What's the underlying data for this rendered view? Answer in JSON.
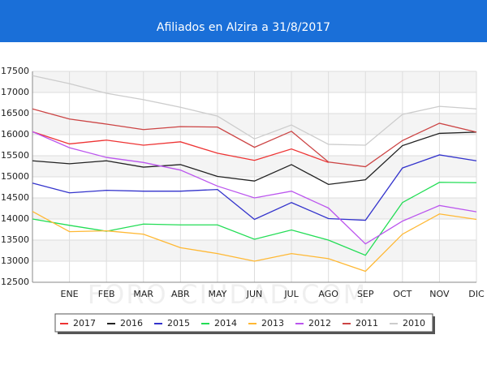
{
  "chart_data": {
    "type": "line",
    "title": "Afiliados en Alzira a 31/8/2017",
    "watermark": "FORO-CIUDAD.COM",
    "categories": [
      null,
      "ENE",
      "FEB",
      "MAR",
      "ABR",
      "MAY",
      "JUN",
      "JUL",
      "AGO",
      "SEP",
      "OCT",
      "NOV",
      "DIC"
    ],
    "ylim": [
      12500,
      17500
    ],
    "yticks": [
      12500,
      13000,
      13500,
      14000,
      14500,
      15000,
      15500,
      16000,
      16500,
      17000,
      17500
    ],
    "grid": true,
    "series": [
      {
        "name": "2017",
        "color": "#ee3333",
        "values": [
          16070,
          15780,
          15870,
          15750,
          15830,
          15560,
          15390,
          15660,
          15340,
          null,
          null,
          null,
          null
        ]
      },
      {
        "name": "2016",
        "color": "#222222",
        "values": [
          15380,
          15310,
          15380,
          15230,
          15290,
          15010,
          14900,
          15290,
          14820,
          14930,
          15740,
          16030,
          16060
        ]
      },
      {
        "name": "2015",
        "color": "#3333cc",
        "values": [
          14850,
          14620,
          14680,
          14660,
          14660,
          14700,
          13990,
          14390,
          14010,
          13970,
          15210,
          15520,
          15380
        ]
      },
      {
        "name": "2014",
        "color": "#22dd55",
        "values": [
          14000,
          13850,
          13710,
          13880,
          13860,
          13860,
          13520,
          13740,
          13500,
          13140,
          14390,
          14870,
          14860
        ]
      },
      {
        "name": "2013",
        "color": "#ffb833",
        "values": [
          14180,
          13700,
          13720,
          13640,
          13320,
          13180,
          13000,
          13180,
          13060,
          12760,
          13640,
          14120,
          13990
        ]
      },
      {
        "name": "2012",
        "color": "#bb55ee",
        "values": [
          16070,
          15690,
          15460,
          15340,
          15160,
          14780,
          14500,
          14660,
          14260,
          13410,
          13950,
          14320,
          14170
        ]
      },
      {
        "name": "2011",
        "color": "#cc4444",
        "values": [
          16610,
          16370,
          16250,
          16120,
          16190,
          16180,
          15700,
          16080,
          15350,
          15240,
          15860,
          16270,
          16060
        ]
      },
      {
        "name": "2010",
        "color": "#cccccc",
        "values": [
          17400,
          17210,
          16980,
          16830,
          16650,
          16440,
          15900,
          16230,
          15770,
          15750,
          16480,
          16670,
          16610
        ]
      }
    ]
  }
}
